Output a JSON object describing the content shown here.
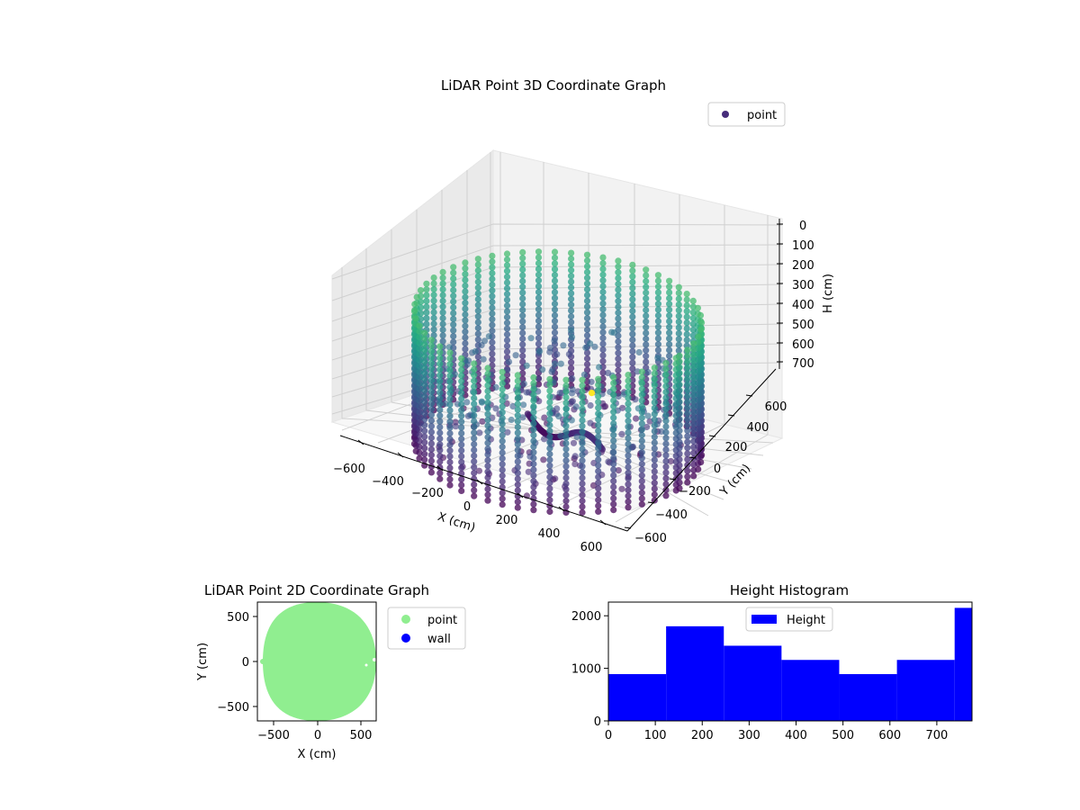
{
  "figure": {
    "background": "#ffffff"
  },
  "chart_data": [
    {
      "type": "scatter",
      "projection": "3d",
      "title": "LiDAR Point 3D Coordinate Graph",
      "xlabel": "X (cm)",
      "ylabel": "Y (cm)",
      "zlabel": "H (cm)",
      "xticks": [
        "−600",
        "−400",
        "−200",
        "0",
        "200",
        "400",
        "600"
      ],
      "yticks": [
        "−600",
        "−400",
        "−200",
        "0",
        "200",
        "400",
        "600"
      ],
      "zticks": [
        "0",
        "100",
        "200",
        "300",
        "400",
        "500",
        "600",
        "700"
      ],
      "xlim": [
        -650,
        650
      ],
      "ylim": [
        -650,
        650
      ],
      "zlim": [
        0,
        780
      ],
      "z_axis_inverted": true,
      "colormap": "viridis",
      "color_by": "height",
      "legend": {
        "entries": [
          "point"
        ],
        "placement": "upper-right"
      },
      "grid": true,
      "series": [
        {
          "name": "point",
          "shape": "cylindrical wall of vertical scan columns plus interior clutter",
          "wall_radius": 600,
          "height_range": [
            0,
            770
          ],
          "outlier": {
            "x": 520,
            "y": -560,
            "h": 0
          }
        }
      ]
    },
    {
      "type": "scatter",
      "title": "LiDAR Point 2D Coordinate Graph",
      "xlabel": "X (cm)",
      "ylabel": "Y (cm)",
      "xticks": [
        "−500",
        "0",
        "500"
      ],
      "yticks": [
        "−500",
        "0",
        "500"
      ],
      "xlim": [
        -680,
        680
      ],
      "ylim": [
        -680,
        680
      ],
      "legend": {
        "entries": [
          "point",
          "wall"
        ],
        "placement": "outside-right"
      },
      "series": [
        {
          "name": "point",
          "color": "#90ee90",
          "shape": "filled disk of radius ~640"
        },
        {
          "name": "wall",
          "color": "#0000ff",
          "points": []
        }
      ]
    },
    {
      "type": "bar",
      "subtype": "histogram",
      "title": "Height Histogram",
      "xlabel": "",
      "ylabel": "",
      "xticks": [
        "0",
        "100",
        "200",
        "300",
        "400",
        "500",
        "600",
        "700"
      ],
      "yticks": [
        "0",
        "1000",
        "2000"
      ],
      "xlim": [
        0,
        775
      ],
      "ylim": [
        0,
        2260
      ],
      "color": "#0000ff",
      "legend": {
        "entries": [
          "Height"
        ],
        "placement": "upper-center"
      },
      "series": [
        {
          "name": "Height",
          "bin_edges": [
            0,
            123,
            246,
            369,
            492,
            615,
            738,
            775
          ],
          "values": [
            890,
            1800,
            1430,
            1160,
            890,
            1160,
            2150
          ]
        }
      ]
    }
  ]
}
